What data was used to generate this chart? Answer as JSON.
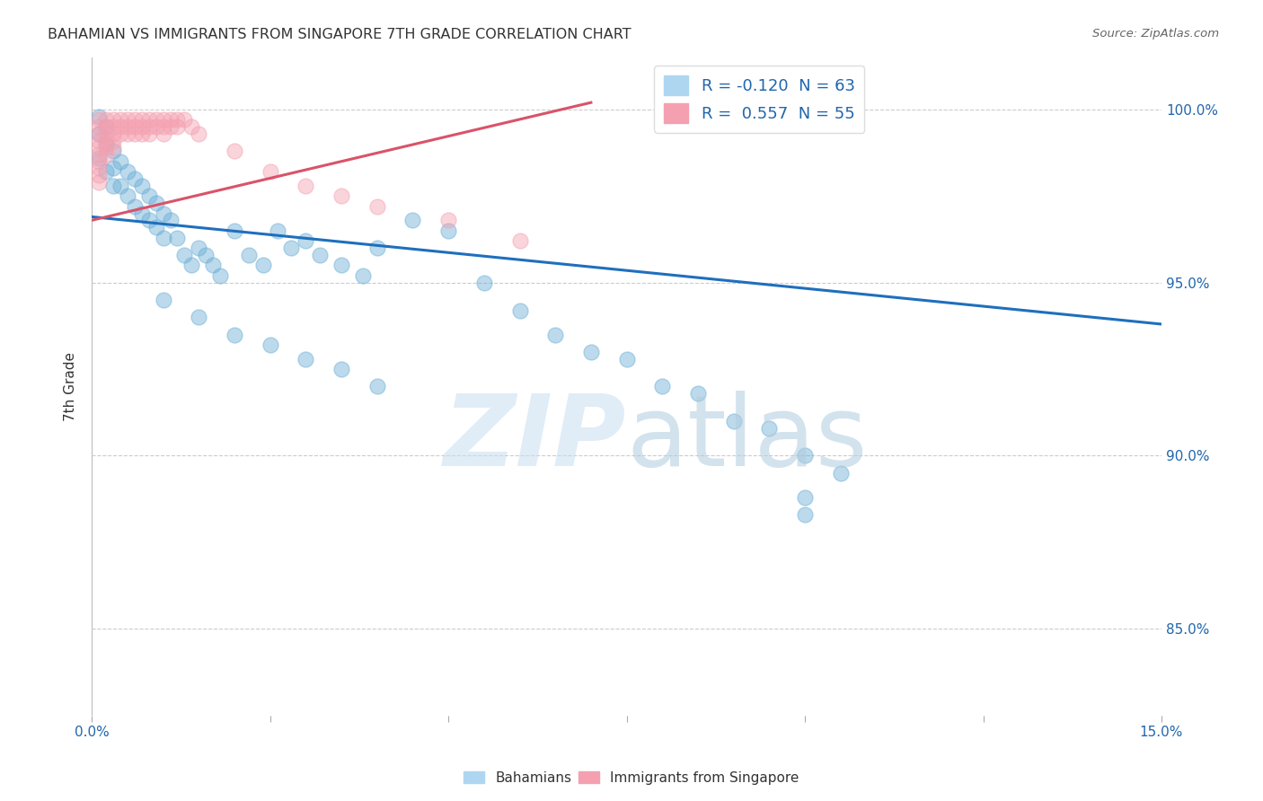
{
  "title": "BAHAMIAN VS IMMIGRANTS FROM SINGAPORE 7TH GRADE CORRELATION CHART",
  "source": "Source: ZipAtlas.com",
  "ylabel": "7th Grade",
  "ytick_labels": [
    "85.0%",
    "90.0%",
    "95.0%",
    "100.0%"
  ],
  "ytick_values": [
    0.85,
    0.9,
    0.95,
    1.0
  ],
  "xlim": [
    0.0,
    0.15
  ],
  "ylim": [
    0.825,
    1.015
  ],
  "blue_color": "#6BAED6",
  "pink_color": "#F4A0B0",
  "blue_line_color": "#1F6FBD",
  "pink_line_color": "#D9536A",
  "blue_line_x0": 0.0,
  "blue_line_y0": 0.969,
  "blue_line_x1": 0.15,
  "blue_line_y1": 0.938,
  "pink_line_x0": 0.0,
  "pink_line_y0": 0.968,
  "pink_line_x1": 0.07,
  "pink_line_y1": 1.002,
  "blue_scatter_x": [
    0.001,
    0.001,
    0.001,
    0.002,
    0.002,
    0.002,
    0.003,
    0.003,
    0.003,
    0.004,
    0.004,
    0.005,
    0.005,
    0.006,
    0.006,
    0.007,
    0.007,
    0.008,
    0.008,
    0.009,
    0.009,
    0.01,
    0.01,
    0.011,
    0.012,
    0.013,
    0.014,
    0.015,
    0.016,
    0.017,
    0.018,
    0.02,
    0.022,
    0.024,
    0.026,
    0.028,
    0.03,
    0.032,
    0.035,
    0.038,
    0.04,
    0.045,
    0.05,
    0.055,
    0.06,
    0.065,
    0.07,
    0.075,
    0.08,
    0.085,
    0.09,
    0.095,
    0.1,
    0.105,
    0.01,
    0.015,
    0.02,
    0.025,
    0.03,
    0.035,
    0.04,
    0.1,
    0.1
  ],
  "blue_scatter_y": [
    0.998,
    0.993,
    0.986,
    0.995,
    0.99,
    0.982,
    0.988,
    0.983,
    0.978,
    0.985,
    0.978,
    0.982,
    0.975,
    0.98,
    0.972,
    0.978,
    0.97,
    0.975,
    0.968,
    0.973,
    0.966,
    0.97,
    0.963,
    0.968,
    0.963,
    0.958,
    0.955,
    0.96,
    0.958,
    0.955,
    0.952,
    0.965,
    0.958,
    0.955,
    0.965,
    0.96,
    0.962,
    0.958,
    0.955,
    0.952,
    0.96,
    0.968,
    0.965,
    0.95,
    0.942,
    0.935,
    0.93,
    0.928,
    0.92,
    0.918,
    0.91,
    0.908,
    0.9,
    0.895,
    0.945,
    0.94,
    0.935,
    0.932,
    0.928,
    0.925,
    0.92,
    0.888,
    0.883
  ],
  "pink_scatter_x": [
    0.001,
    0.001,
    0.001,
    0.001,
    0.001,
    0.001,
    0.001,
    0.001,
    0.001,
    0.001,
    0.002,
    0.002,
    0.002,
    0.002,
    0.002,
    0.002,
    0.003,
    0.003,
    0.003,
    0.003,
    0.003,
    0.004,
    0.004,
    0.004,
    0.005,
    0.005,
    0.005,
    0.006,
    0.006,
    0.006,
    0.007,
    0.007,
    0.007,
    0.008,
    0.008,
    0.008,
    0.009,
    0.009,
    0.01,
    0.01,
    0.01,
    0.011,
    0.011,
    0.012,
    0.012,
    0.013,
    0.014,
    0.015,
    0.02,
    0.025,
    0.03,
    0.035,
    0.04,
    0.05,
    0.06
  ],
  "pink_scatter_y": [
    0.997,
    0.995,
    0.993,
    0.991,
    0.989,
    0.987,
    0.985,
    0.983,
    0.981,
    0.979,
    0.997,
    0.995,
    0.993,
    0.991,
    0.989,
    0.987,
    0.997,
    0.995,
    0.993,
    0.991,
    0.989,
    0.997,
    0.995,
    0.993,
    0.997,
    0.995,
    0.993,
    0.997,
    0.995,
    0.993,
    0.997,
    0.995,
    0.993,
    0.997,
    0.995,
    0.993,
    0.997,
    0.995,
    0.997,
    0.995,
    0.993,
    0.997,
    0.995,
    0.997,
    0.995,
    0.997,
    0.995,
    0.993,
    0.988,
    0.982,
    0.978,
    0.975,
    0.972,
    0.968,
    0.962
  ]
}
